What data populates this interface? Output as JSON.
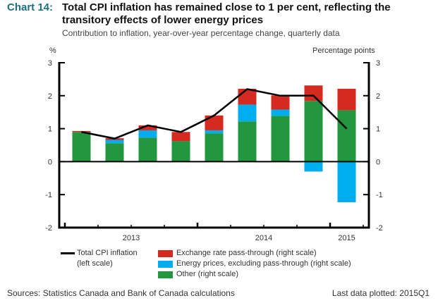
{
  "header": {
    "chart_number": "Chart 14:",
    "title": "Total CPI inflation has remained close to 1 per cent, reflecting the transitory effects of lower energy prices",
    "subtitle": "Contribution to inflation, year-over-year percentage change, quarterly data"
  },
  "axes": {
    "left_unit": "%",
    "right_unit": "Percentage points"
  },
  "footer": {
    "sources": "Sources: Statistics Canada and Bank of Canada calculations",
    "last_data": "Last data plotted: 2015Q1"
  },
  "colors": {
    "exchange": "#d42a20",
    "energy": "#00aeef",
    "other": "#22973f",
    "line": "#000000",
    "label_accent": "#1d6f80"
  },
  "legend": {
    "line": "Total CPI inflation",
    "line_sub": "(left scale)",
    "exchange": "Exchange rate pass-through (right scale)",
    "energy": "Energy prices, excluding pass-through (right scale)",
    "other": "Other (right scale)"
  },
  "chart_data": {
    "type": "bar",
    "stacked": true,
    "title": "Total CPI inflation has remained close to 1 per cent, reflecting the transitory effects of lower energy prices",
    "subtitle": "Contribution to inflation, year-over-year percentage change, quarterly data",
    "xlabel": "",
    "ylabel_left": "%",
    "ylabel_right": "Percentage points",
    "categories": [
      "2013Q1",
      "2013Q2",
      "2013Q3",
      "2013Q4",
      "2014Q1",
      "2014Q2",
      "2014Q3",
      "2014Q4",
      "2015Q1"
    ],
    "year_labels": [
      {
        "label": "2013",
        "span": [
          "2013Q1",
          "2013Q4"
        ]
      },
      {
        "label": "2014",
        "span": [
          "2014Q1",
          "2014Q4"
        ]
      },
      {
        "label": "2015",
        "span": [
          "2015Q1",
          "2015Q1"
        ]
      }
    ],
    "ylim": [
      -2,
      3
    ],
    "yticks": [
      -2,
      -1,
      0,
      1,
      2,
      3
    ],
    "series": [
      {
        "name": "Other (right scale)",
        "kind": "bar",
        "color": "#22973f",
        "values": [
          0.9,
          0.56,
          0.73,
          0.62,
          0.86,
          1.22,
          1.39,
          1.84,
          1.56
        ]
      },
      {
        "name": "Energy prices, excluding pass-through (right scale)",
        "kind": "bar",
        "color": "#00aeef",
        "values": [
          0.0,
          0.1,
          0.22,
          0.0,
          0.09,
          0.51,
          0.19,
          -0.3,
          -1.23
        ]
      },
      {
        "name": "Exchange rate pass-through (right scale)",
        "kind": "bar",
        "color": "#d42a20",
        "values": [
          0.03,
          0.05,
          0.15,
          0.28,
          0.45,
          0.48,
          0.43,
          0.47,
          0.65
        ]
      },
      {
        "name": "Total CPI inflation (left scale)",
        "kind": "line",
        "color": "#000000",
        "values": [
          0.9,
          0.7,
          1.1,
          0.9,
          1.4,
          2.2,
          2.0,
          2.0,
          1.0
        ]
      }
    ],
    "grid": false,
    "legend_position": "bottom"
  }
}
